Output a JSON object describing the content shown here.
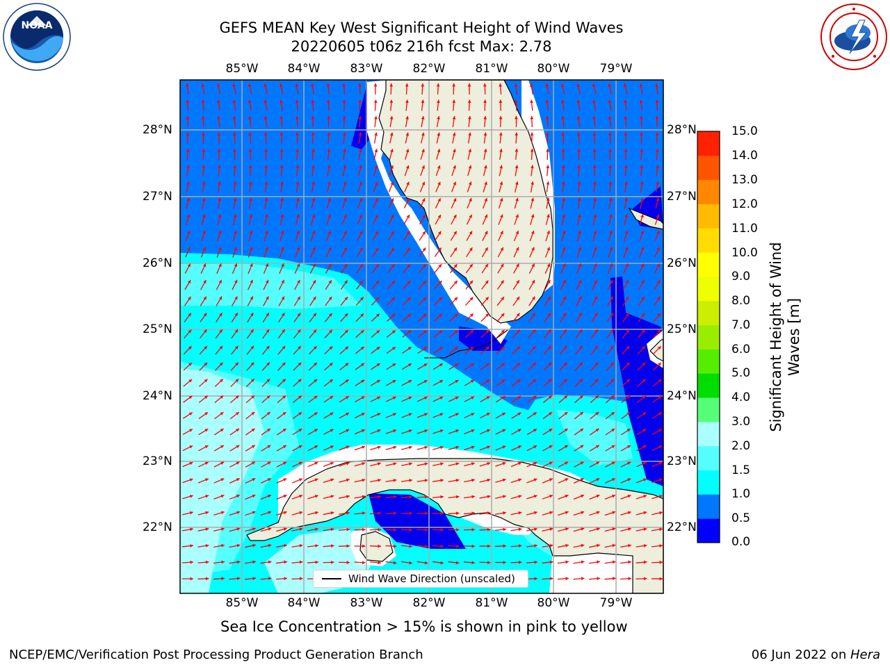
{
  "header": {
    "title_line1": "GEFS MEAN Key West Significant Height of Wind Waves",
    "title_line2": "20220605 t06z 216h fcst   Max: 2.78"
  },
  "logos": {
    "left": {
      "name": "NOAA",
      "ring_text": "NATIONAL OCEANIC AND ATMOSPHERIC ADMINISTRATION · U.S. DEPARTMENT OF COMMERCE"
    },
    "right": {
      "name": "NATIONAL WEATHER SERVICE"
    }
  },
  "map": {
    "lon_labels": [
      "85°W",
      "84°W",
      "83°W",
      "82°W",
      "81°W",
      "80°W",
      "79°W"
    ],
    "lat_labels": [
      "28°N",
      "27°N",
      "26°N",
      "25°N",
      "24°N",
      "23°N",
      "22°N"
    ],
    "legend_label": "Wind Wave Direction (unscaled)",
    "arrow_color": "#ff0000",
    "land_color": "#eeeedd"
  },
  "colorbar": {
    "title": "Significant Height of Wind Waves [m]",
    "tick_labels": [
      "0.0",
      "0.5",
      "1.0",
      "1.5",
      "2.0",
      "3.0",
      "4.0",
      "5.0",
      "6.0",
      "7.0",
      "8.0",
      "9.0",
      "10.0",
      "11.0",
      "12.0",
      "13.0",
      "14.0",
      "15.0"
    ],
    "colors": [
      "#0000ff",
      "#0077ff",
      "#00ffff",
      "#55ffff",
      "#aaffff",
      "#55ff77",
      "#00dd00",
      "#55ee00",
      "#99ee00",
      "#ccee00",
      "#eeff00",
      "#ffff00",
      "#ffdd00",
      "#ffbb00",
      "#ff8800",
      "#ff5500",
      "#ff2200"
    ]
  },
  "sea_ice_note": "Sea Ice Concentration > 15% is shown in pink to yellow",
  "footer": {
    "left": "NCEP/EMC/Verification Post Processing Product Generation Branch",
    "right_prefix": "06 Jun 2022 on ",
    "right_host": "Hera"
  }
}
